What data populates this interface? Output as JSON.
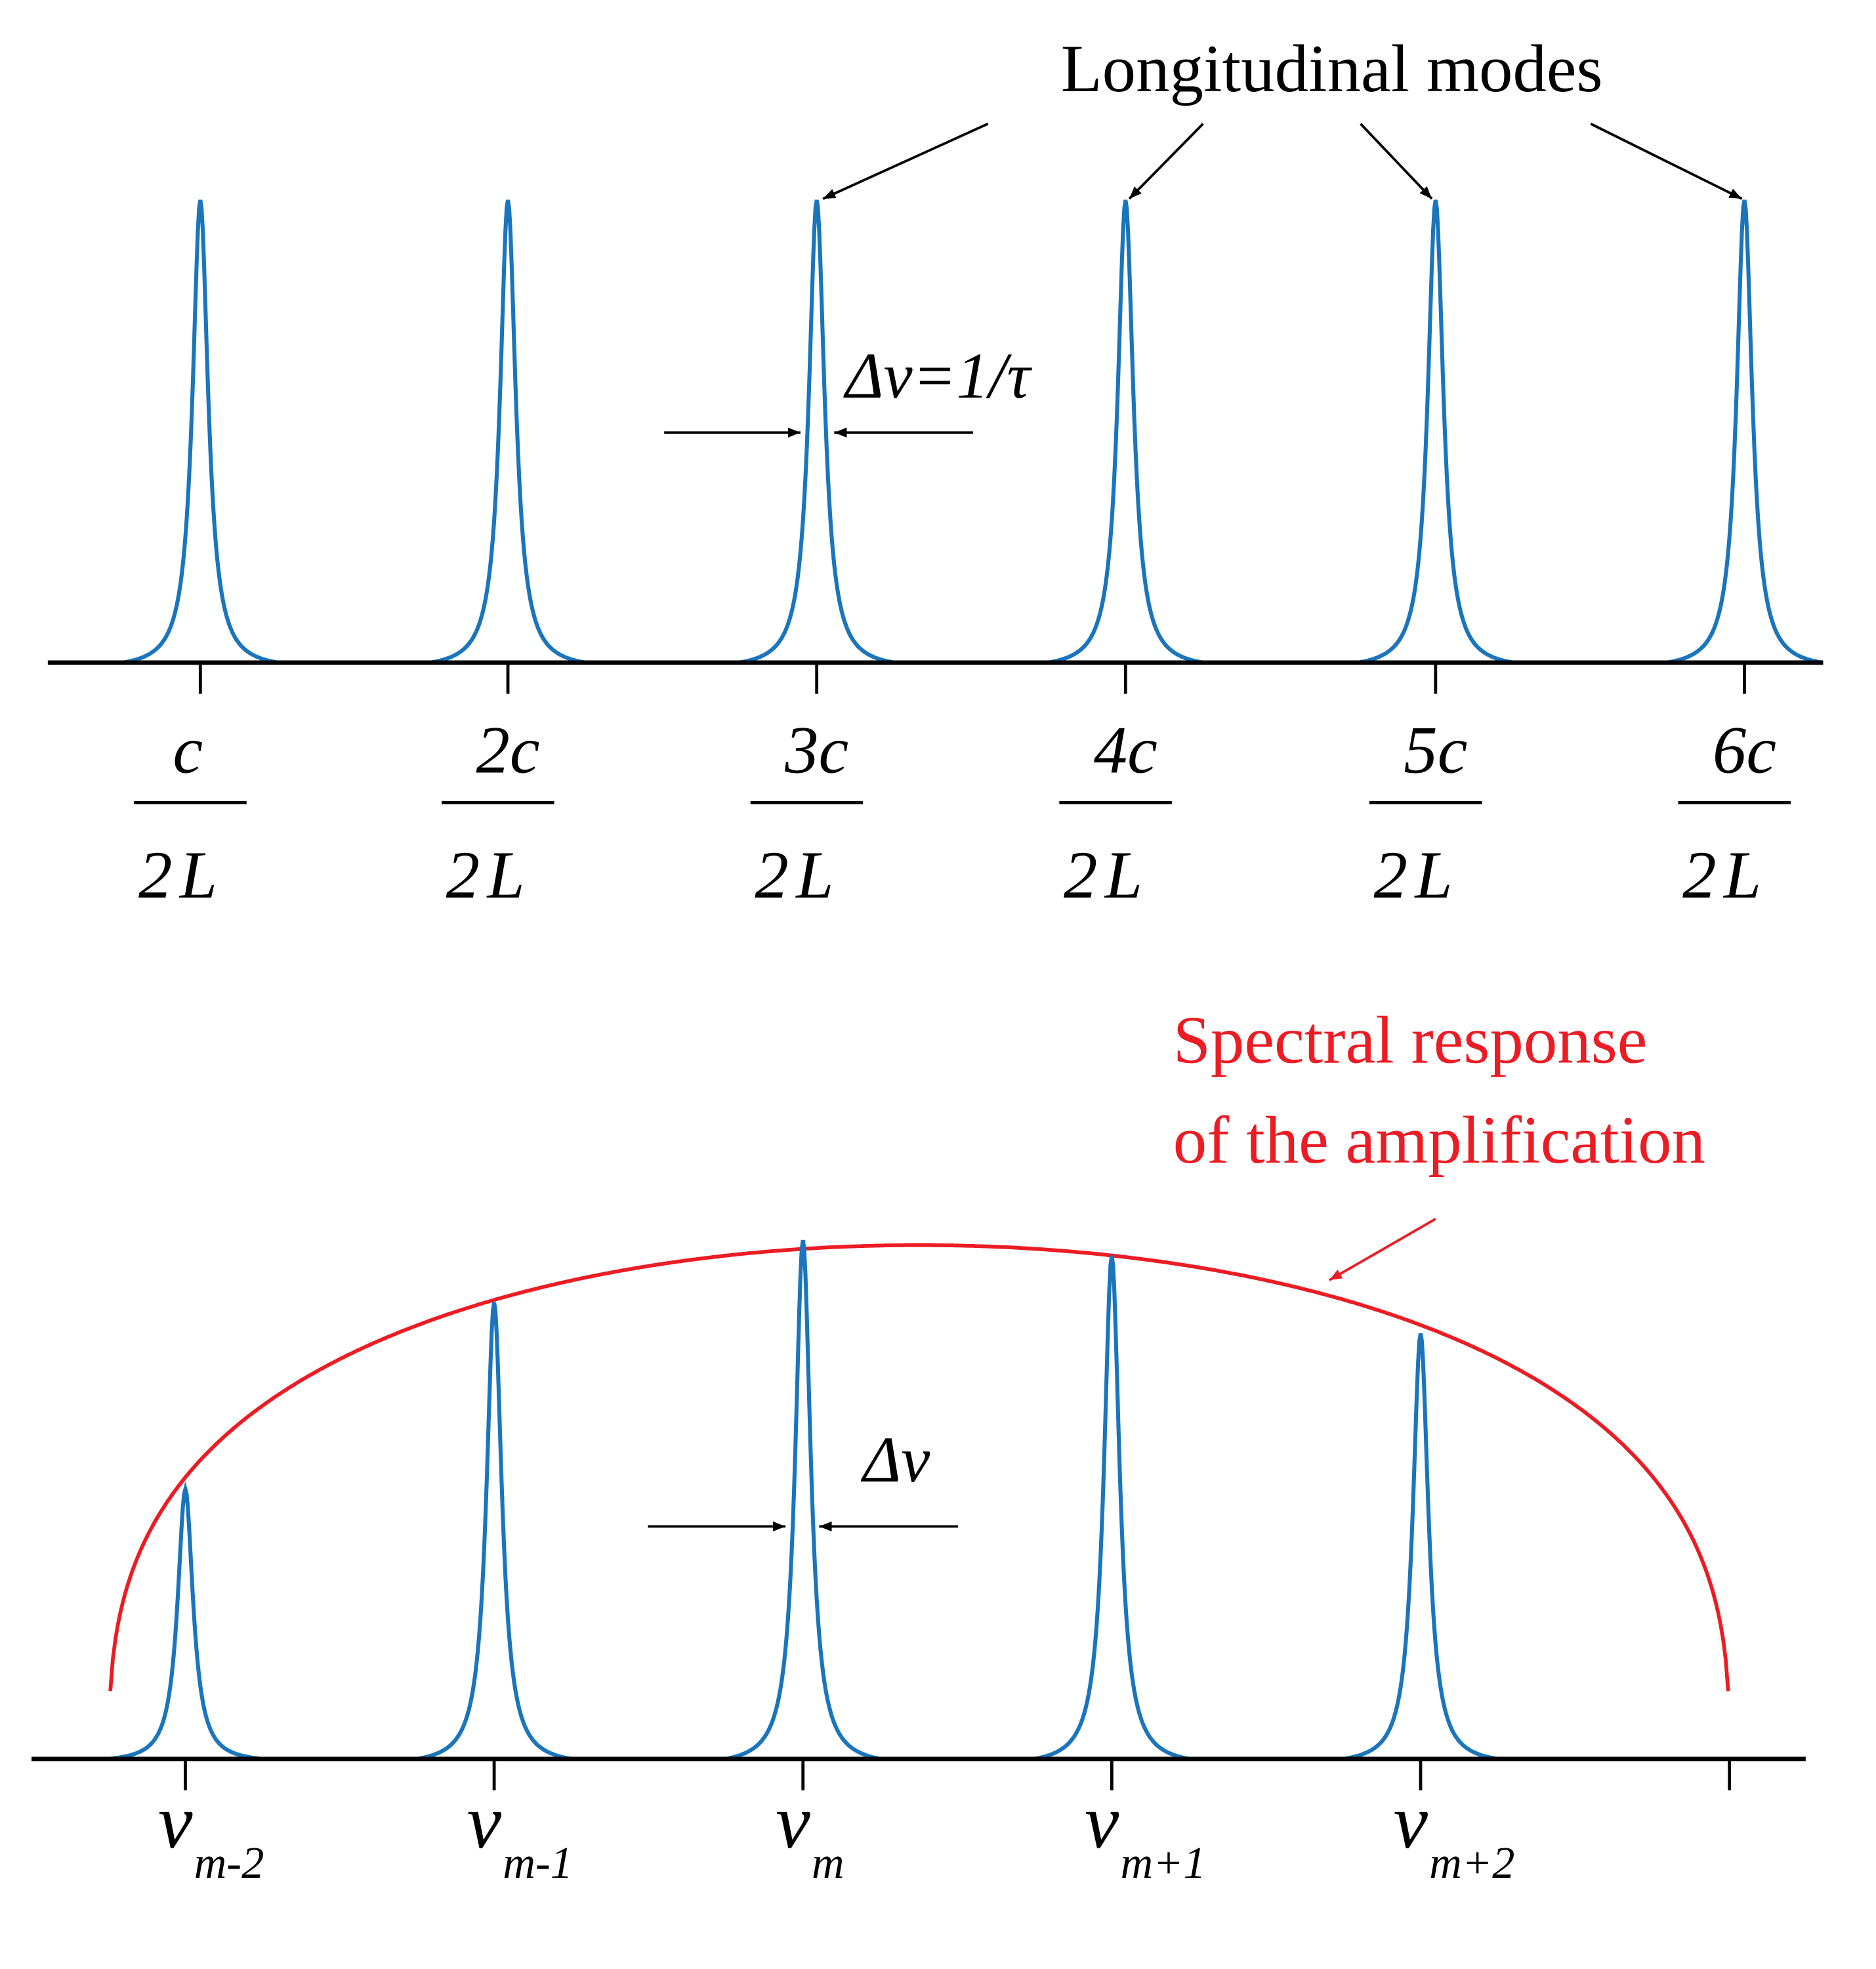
{
  "colors": {
    "mode": "#1a75bc",
    "gain": "#ec1c24",
    "axis": "#000000"
  },
  "top_panel": {
    "annotation": "Longitudinal modes",
    "linewidth_label": "Δν=1/τ",
    "ticks": [
      {
        "num": "c",
        "den": "2L"
      },
      {
        "num": "2c",
        "den": "2L"
      },
      {
        "num": "3c",
        "den": "2L"
      },
      {
        "num": "4c",
        "den": "2L"
      },
      {
        "num": "5c",
        "den": "2L"
      },
      {
        "num": "6c",
        "den": "2L"
      }
    ],
    "mode_levels": [
      1,
      1,
      1,
      1,
      1,
      1
    ]
  },
  "bottom_panel": {
    "annotation_line1": "Spectral response",
    "annotation_line2": "of the amplification",
    "linewidth_label": "Δν",
    "ticks": [
      {
        "sym": "ν",
        "sub": "m-2"
      },
      {
        "sym": "ν",
        "sub": "m-1"
      },
      {
        "sym": "ν",
        "sub": "m"
      },
      {
        "sym": "ν",
        "sub": "m+1"
      },
      {
        "sym": "ν",
        "sub": "m+2"
      },
      {
        "sym": "",
        "sub": ""
      }
    ],
    "mode_levels": [
      0.52,
      0.88,
      1.0,
      0.97,
      0.82
    ]
  }
}
